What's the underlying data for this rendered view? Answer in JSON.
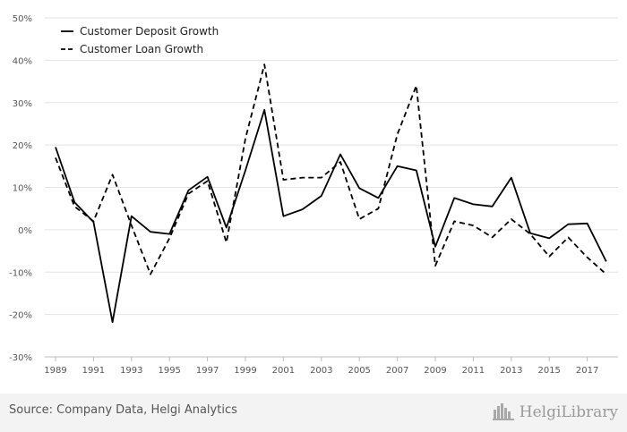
{
  "chart_data": {
    "type": "line",
    "title": "",
    "xlabel": "",
    "ylabel": "",
    "x": [
      1989,
      1990,
      1991,
      1992,
      1993,
      1994,
      1995,
      1996,
      1997,
      1998,
      1999,
      2000,
      2001,
      2002,
      2003,
      2004,
      2005,
      2006,
      2007,
      2008,
      2009,
      2010,
      2011,
      2012,
      2013,
      2014,
      2015,
      2016,
      2017,
      2018
    ],
    "x_tick_labels": [
      "1989",
      "1991",
      "1993",
      "1995",
      "1997",
      "1999",
      "2001",
      "2003",
      "2005",
      "2007",
      "2009",
      "2011",
      "2013",
      "2015",
      "2017"
    ],
    "ylim": [
      -30,
      50
    ],
    "y_tick_labels": [
      "50%",
      "40%",
      "30%",
      "20%",
      "10%",
      "0%",
      "-10%",
      "-20%",
      "-30%"
    ],
    "y_ticks": [
      50,
      40,
      30,
      20,
      10,
      0,
      -10,
      -20,
      -30
    ],
    "grid": "horizontal",
    "legend_position": "top-left",
    "series": [
      {
        "name": "Customer Deposit Growth",
        "style": "solid",
        "color": "#000000",
        "values": [
          19.5,
          6.5,
          1.8,
          -21.8,
          3.2,
          -0.5,
          -1.0,
          9.3,
          12.5,
          0.5,
          14.0,
          28.3,
          3.2,
          4.8,
          8.0,
          17.8,
          9.8,
          7.5,
          15.0,
          14.0,
          -4.0,
          7.5,
          6.0,
          5.5,
          12.3,
          -0.8,
          -2.0,
          1.3,
          1.5,
          -7.5
        ]
      },
      {
        "name": "Customer Loan Growth",
        "style": "dashed",
        "color": "#000000",
        "values": [
          17.0,
          5.5,
          2.0,
          13.0,
          1.0,
          -10.5,
          -2.0,
          8.5,
          11.5,
          -3.0,
          21.5,
          39.0,
          11.8,
          12.3,
          12.3,
          16.0,
          2.5,
          5.0,
          22.5,
          34.0,
          -8.5,
          2.0,
          1.0,
          -1.8,
          2.5,
          -1.0,
          -6.3,
          -1.8,
          -6.5,
          -10.5
        ]
      }
    ]
  },
  "footer": {
    "source": "Source: Company Data, Helgi Analytics",
    "brand": "HelgiLibrary"
  }
}
